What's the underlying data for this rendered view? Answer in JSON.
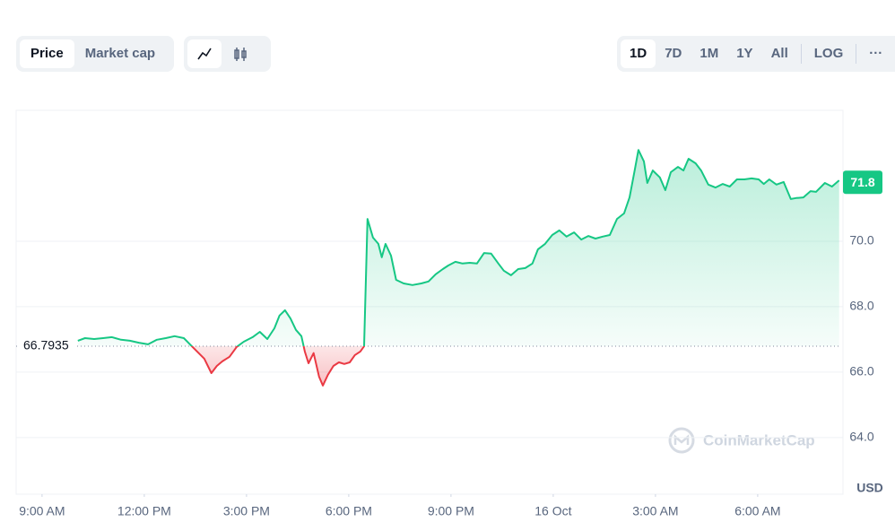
{
  "controls": {
    "metric": [
      "Price",
      "Market cap"
    ],
    "ranges": [
      "1D",
      "7D",
      "1M",
      "1Y",
      "All"
    ],
    "scale": "LOG",
    "more": "···"
  },
  "chart_data": {
    "type": "line",
    "x": [
      1.05,
      1.26,
      1.53,
      1.79,
      2.05,
      2.32,
      2.58,
      2.84,
      3.11,
      3.37,
      3.63,
      3.89,
      4.16,
      4.34,
      4.55,
      4.76,
      4.97,
      5.13,
      5.29,
      5.5,
      5.71,
      5.92,
      6.18,
      6.39,
      6.61,
      6.82,
      6.97,
      7.13,
      7.29,
      7.45,
      7.61,
      7.71,
      7.82,
      7.97,
      8.13,
      8.24,
      8.39,
      8.55,
      8.71,
      8.87,
      9.03,
      9.18,
      9.34,
      9.45,
      9.55,
      9.71,
      9.87,
      9.97,
      10.08,
      10.24,
      10.39,
      10.61,
      10.87,
      11.13,
      11.34,
      11.55,
      11.76,
      11.92,
      12.13,
      12.34,
      12.55,
      12.76,
      12.97,
      13.18,
      13.39,
      13.55,
      13.76,
      13.97,
      14.18,
      14.39,
      14.55,
      14.76,
      14.97,
      15.18,
      15.39,
      15.61,
      15.82,
      16.03,
      16.24,
      16.45,
      16.66,
      16.87,
      17.08,
      17.24,
      17.39,
      17.5,
      17.66,
      17.76,
      17.92,
      18.13,
      18.29,
      18.45,
      18.66,
      18.82,
      18.97,
      19.18,
      19.34,
      19.55,
      19.76,
      19.97,
      20.18,
      20.39,
      20.61,
      20.82,
      21.03,
      21.18,
      21.34,
      21.55,
      21.76,
      21.97,
      22.13,
      22.34,
      22.55,
      22.71,
      22.97,
      23.18,
      23.39
    ],
    "values": [
      66.96,
      67.04,
      67.01,
      67.04,
      67.07,
      66.99,
      66.96,
      66.9,
      66.85,
      66.99,
      67.04,
      67.1,
      67.04,
      66.85,
      66.63,
      66.41,
      65.97,
      66.19,
      66.33,
      66.47,
      66.77,
      66.93,
      67.07,
      67.23,
      67.01,
      67.34,
      67.73,
      67.89,
      67.64,
      67.29,
      67.1,
      66.63,
      66.27,
      66.58,
      65.86,
      65.59,
      65.92,
      66.19,
      66.3,
      66.25,
      66.3,
      66.52,
      66.63,
      66.79,
      70.68,
      70.11,
      69.92,
      69.51,
      69.92,
      69.56,
      68.82,
      68.71,
      68.66,
      68.71,
      68.77,
      68.99,
      69.15,
      69.26,
      69.37,
      69.32,
      69.34,
      69.32,
      69.64,
      69.62,
      69.32,
      69.1,
      68.96,
      69.15,
      69.18,
      69.32,
      69.75,
      69.92,
      70.19,
      70.33,
      70.14,
      70.27,
      70.05,
      70.16,
      70.08,
      70.14,
      70.19,
      70.68,
      70.85,
      71.34,
      72.16,
      72.79,
      72.44,
      71.78,
      72.16,
      71.95,
      71.56,
      72.11,
      72.27,
      72.16,
      72.52,
      72.38,
      72.16,
      71.73,
      71.64,
      71.75,
      71.67,
      71.89,
      71.89,
      71.92,
      71.89,
      71.75,
      71.89,
      71.73,
      71.81,
      71.29,
      71.32,
      71.34,
      71.53,
      71.51,
      71.78,
      71.67,
      71.86
    ],
    "xlim": [
      -0.76,
      23.45
    ],
    "xticks": [
      {
        "value": 0,
        "label": "9:00 AM"
      },
      {
        "value": 3,
        "label": "12:00 PM"
      },
      {
        "value": 6,
        "label": "3:00 PM"
      },
      {
        "value": 9,
        "label": "6:00 PM"
      },
      {
        "value": 12,
        "label": "9:00 PM"
      },
      {
        "value": 15,
        "label": "16 Oct"
      },
      {
        "value": 18,
        "label": "3:00 AM"
      },
      {
        "value": 21,
        "label": "6:00 AM"
      }
    ],
    "ylim": [
      62.27,
      74.0
    ],
    "yticks": [
      {
        "value": 64,
        "label": "64.0"
      },
      {
        "value": 66,
        "label": "66.0"
      },
      {
        "value": 68,
        "label": "68.0"
      },
      {
        "value": 70,
        "label": "70.0"
      }
    ],
    "baseline": 66.7935,
    "last_price_label": 71.8,
    "currency": "USD",
    "watermark": "CoinMarketCap",
    "up_color": "#16c784",
    "down_color": "#ea3943",
    "grid": true
  }
}
